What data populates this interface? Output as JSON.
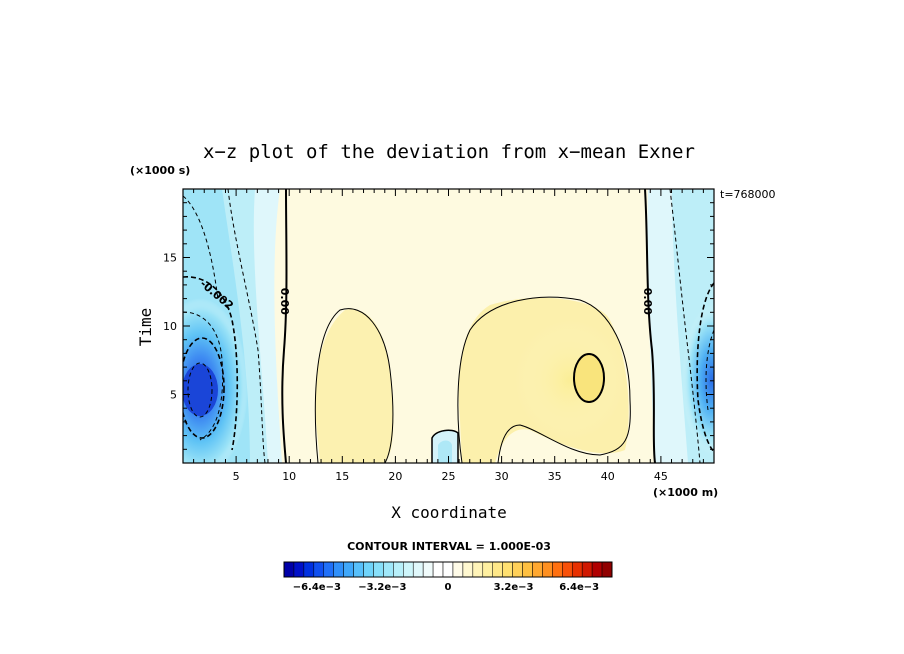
{
  "chart_data": {
    "type": "contour",
    "title": "x−z plot of the deviation from x−mean Exner",
    "xlabel": "X coordinate",
    "ylabel": "Time",
    "x_unit": "(×1000 m)",
    "y_unit": "(×1000 s)",
    "time_label": "t=768000",
    "xlim": [
      0,
      50
    ],
    "ylim": [
      0,
      20
    ],
    "x_ticks": [
      5,
      10,
      15,
      20,
      25,
      30,
      35,
      40,
      45
    ],
    "y_ticks": [
      5,
      10,
      15
    ],
    "contour_interval_text": "CONTOUR INTERVAL = 1.000E-03",
    "contour_labels": [
      {
        "text": "-0.002",
        "x": 3.2,
        "y": 12.3
      },
      {
        "text": "0.00",
        "x": 9.6,
        "y": 11.8
      },
      {
        "text": "0.00",
        "x": 43.8,
        "y": 11.8
      }
    ],
    "colorbar": {
      "range": [
        -0.008,
        0.008
      ],
      "tick_labels": [
        "−6.4e−3",
        "−3.2e−3",
        "0",
        "3.2e−3",
        "6.4e−3"
      ],
      "tick_values": [
        -0.0064,
        -0.0032,
        0,
        0.0032,
        0.0064
      ]
    },
    "features": [
      {
        "kind": "min",
        "x": 1.5,
        "y": 5.5,
        "value": -0.005
      },
      {
        "kind": "min",
        "x": 49.5,
        "y": 6.5,
        "value": -0.004
      },
      {
        "kind": "max",
        "x": 38.2,
        "y": 6.5,
        "value": 0.002
      },
      {
        "kind": "max",
        "x": 16.5,
        "y": 6.0,
        "value": 0.0015
      },
      {
        "kind": "min",
        "x": 25.0,
        "y": 1.2,
        "value": -0.0005
      }
    ]
  }
}
